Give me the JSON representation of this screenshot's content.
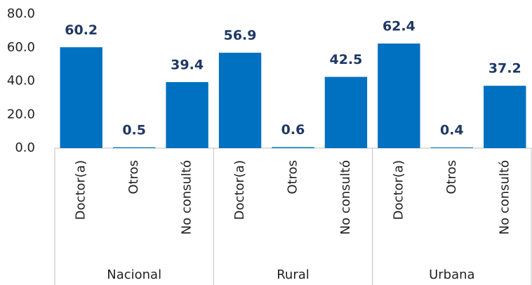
{
  "chart_data": {
    "type": "bar",
    "color": "#0070c0",
    "grid": false,
    "ylim": [
      0,
      80
    ],
    "yticks": [
      {
        "value": 0,
        "label": "0.0"
      },
      {
        "value": 20,
        "label": "20.0"
      },
      {
        "value": 40,
        "label": "40.0"
      },
      {
        "value": 60,
        "label": "60.0"
      },
      {
        "value": 80,
        "label": "80.0"
      }
    ],
    "groups": [
      {
        "name": "Nacional",
        "categories": [
          "Doctor(a)",
          "Otros",
          "No consultó"
        ],
        "values": [
          60.2,
          0.5,
          39.4
        ]
      },
      {
        "name": "Rural",
        "categories": [
          "Doctor(a)",
          "Otros",
          "No consultó"
        ],
        "values": [
          56.9,
          0.6,
          42.5
        ]
      },
      {
        "name": "Urbana",
        "categories": [
          "Doctor(a)",
          "Otros",
          "No consultó"
        ],
        "values": [
          62.4,
          0.4,
          37.2
        ]
      }
    ]
  }
}
